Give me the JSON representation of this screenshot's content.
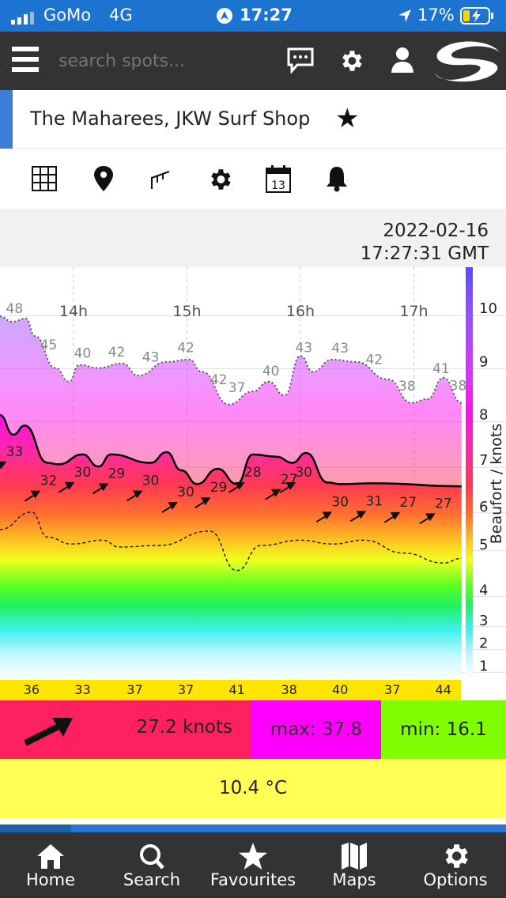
{
  "status": {
    "carrier": "GoMo",
    "network": "4G",
    "time": "17:27",
    "battery": "17%"
  },
  "nav": {
    "search_placeholder": "search spots..."
  },
  "spot": {
    "title": "The Maharees, JKW Surf Shop"
  },
  "date": {
    "date": "2022-02-16",
    "time": "17:27:31 GMT"
  },
  "chart_data": {
    "type": "area",
    "x_unit": "hour of day (GMT)",
    "xlim": [
      13.35,
      17.42
    ],
    "x_ticks": [
      {
        "v": 14,
        "label": "14h"
      },
      {
        "v": 15,
        "label": "15h"
      },
      {
        "v": 16,
        "label": "16h"
      },
      {
        "v": 17,
        "label": "17h"
      }
    ],
    "ylabel": "Beaufort / knots",
    "ylim_knots": [
      0,
      54
    ],
    "beaufort_ticks": [
      {
        "b": "10",
        "kt": 48
      },
      {
        "b": "9",
        "kt": 41
      },
      {
        "b": "8",
        "kt": 34
      },
      {
        "b": "7",
        "kt": 28
      },
      {
        "b": "6",
        "kt": 22
      },
      {
        "b": "5",
        "kt": 17
      },
      {
        "b": "4",
        "kt": 11
      },
      {
        "b": "3",
        "kt": 7
      },
      {
        "b": "2",
        "kt": 4
      },
      {
        "b": "1",
        "kt": 1
      }
    ],
    "series": [
      {
        "name": "gust",
        "style": "dotted",
        "points": [
          [
            13.35,
            47.9
          ],
          [
            13.46,
            47.2
          ],
          [
            13.58,
            47.6
          ],
          [
            13.66,
            45.3
          ],
          [
            13.84,
            41.1
          ],
          [
            13.96,
            39.3
          ],
          [
            14.05,
            41.5
          ],
          [
            14.22,
            41.1
          ],
          [
            14.43,
            41.7
          ],
          [
            14.57,
            40.1
          ],
          [
            14.82,
            41.9
          ],
          [
            15.02,
            42.2
          ],
          [
            15.13,
            40.6
          ],
          [
            15.37,
            36.3
          ],
          [
            15.58,
            38.0
          ],
          [
            15.72,
            39.3
          ],
          [
            15.86,
            37.5
          ],
          [
            16.0,
            42.7
          ],
          [
            16.11,
            40.6
          ],
          [
            16.28,
            42.2
          ],
          [
            16.49,
            41.9
          ],
          [
            16.77,
            39.6
          ],
          [
            16.98,
            36.5
          ],
          [
            17.12,
            37.0
          ],
          [
            17.26,
            39.8
          ],
          [
            17.42,
            36.5
          ]
        ]
      },
      {
        "name": "average",
        "style": "solid",
        "points": [
          [
            13.35,
            34.9
          ],
          [
            13.47,
            32.3
          ],
          [
            13.57,
            33.5
          ],
          [
            13.77,
            28.6
          ],
          [
            13.87,
            28.4
          ],
          [
            14.08,
            29.7
          ],
          [
            14.22,
            28.1
          ],
          [
            14.33,
            29.7
          ],
          [
            14.68,
            28.6
          ],
          [
            14.82,
            30.0
          ],
          [
            14.95,
            27.6
          ],
          [
            15.09,
            25.8
          ],
          [
            15.27,
            27.8
          ],
          [
            15.44,
            25.8
          ],
          [
            15.58,
            29.7
          ],
          [
            15.79,
            29.4
          ],
          [
            15.93,
            28.6
          ],
          [
            16.05,
            29.9
          ],
          [
            16.24,
            26.0
          ],
          [
            16.35,
            25.8
          ],
          [
            16.66,
            25.9
          ],
          [
            17.42,
            25.5
          ]
        ]
      },
      {
        "name": "minimum",
        "style": "dashed",
        "points": [
          [
            13.35,
            19.8
          ],
          [
            13.63,
            22.1
          ],
          [
            13.77,
            18.8
          ],
          [
            13.98,
            17.9
          ],
          [
            14.26,
            18.4
          ],
          [
            14.4,
            17.5
          ],
          [
            14.75,
            17.7
          ],
          [
            15.2,
            19.6
          ],
          [
            15.44,
            14.4
          ],
          [
            15.65,
            17.7
          ],
          [
            16.0,
            18.4
          ],
          [
            16.28,
            17.9
          ],
          [
            16.56,
            18.4
          ],
          [
            16.91,
            16.7
          ],
          [
            17.26,
            15.4
          ],
          [
            17.42,
            16.0
          ]
        ]
      }
    ],
    "gust_labels": [
      [
        13.48,
        "48"
      ],
      [
        13.78,
        "45"
      ],
      [
        14.08,
        "40"
      ],
      [
        14.38,
        "42"
      ],
      [
        14.68,
        "43"
      ],
      [
        14.99,
        "42"
      ],
      [
        15.28,
        "42"
      ],
      [
        15.44,
        "37"
      ],
      [
        15.74,
        "40"
      ],
      [
        16.03,
        "43"
      ],
      [
        16.35,
        "43"
      ],
      [
        16.65,
        "42"
      ],
      [
        16.94,
        "38"
      ],
      [
        17.24,
        "41"
      ],
      [
        17.39,
        "38"
      ]
    ],
    "avg_labels": [
      [
        13.48,
        "33"
      ],
      [
        13.78,
        "32"
      ],
      [
        14.08,
        "30"
      ],
      [
        14.38,
        "29"
      ],
      [
        14.68,
        "30"
      ],
      [
        14.99,
        "30"
      ],
      [
        15.28,
        "29"
      ],
      [
        15.58,
        "28"
      ],
      [
        15.9,
        "27"
      ],
      [
        16.03,
        "30"
      ],
      [
        16.35,
        "30"
      ],
      [
        16.65,
        "31"
      ],
      [
        16.95,
        "27"
      ],
      [
        17.26,
        "27"
      ]
    ],
    "hourly_gust_strip": [
      [
        13.63,
        "36"
      ],
      [
        14.08,
        "33"
      ],
      [
        14.54,
        "37"
      ],
      [
        14.99,
        "37"
      ],
      [
        15.44,
        "41"
      ],
      [
        15.9,
        "38"
      ],
      [
        16.35,
        "40"
      ],
      [
        16.81,
        "37"
      ],
      [
        17.26,
        "44"
      ]
    ]
  },
  "current": {
    "speed": "27.2 knots",
    "max": "max: 37.8",
    "min": "min: 16.1",
    "temperature": "10.4 °C",
    "colors": {
      "speed": "#ff2060",
      "max": "#ff00ff",
      "min": "#80ff00"
    }
  },
  "bottom_nav": [
    {
      "label": "Home"
    },
    {
      "label": "Search"
    },
    {
      "label": "Favourites"
    },
    {
      "label": "Maps"
    },
    {
      "label": "Options"
    }
  ]
}
